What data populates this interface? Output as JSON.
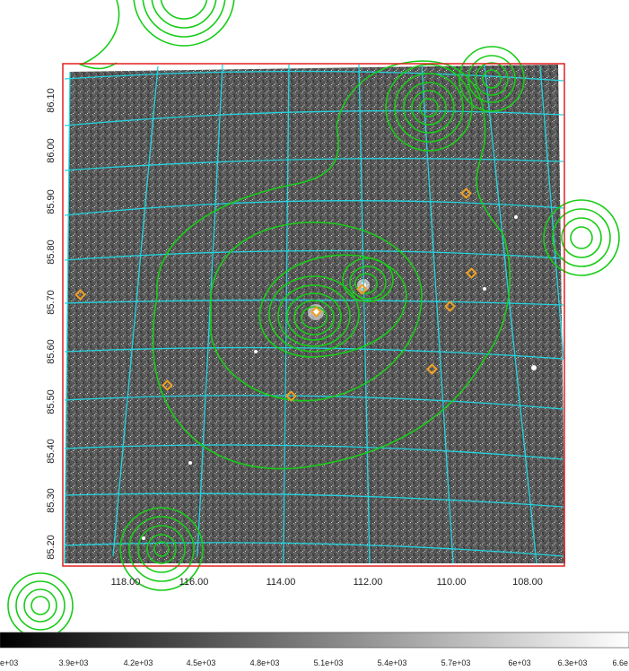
{
  "image": {
    "frame_color": "#e02020",
    "grid_color": "#22d4e0",
    "contour_color": "#18cc18",
    "marker_color": "#f0a020"
  },
  "axes": {
    "x_ticks": [
      "118.00",
      "116.00",
      "114.00",
      "112.00",
      "110.00",
      "108.00"
    ],
    "y_ticks": [
      "86.10",
      "86.00",
      "85.90",
      "85.80",
      "85.70",
      "85.60",
      "85.50",
      "85.40",
      "85.30",
      "85.20"
    ]
  },
  "colorbar": {
    "gradient": [
      "#000000",
      "#ffffff"
    ],
    "labels": [
      "e+03",
      "3.9e+03",
      "4.2e+03",
      "4.5e+03",
      "4.8e+03",
      "5.1e+03",
      "5.4e+03",
      "5.7e+03",
      "6e+03",
      "6.3e+03",
      "6.6e"
    ]
  }
}
